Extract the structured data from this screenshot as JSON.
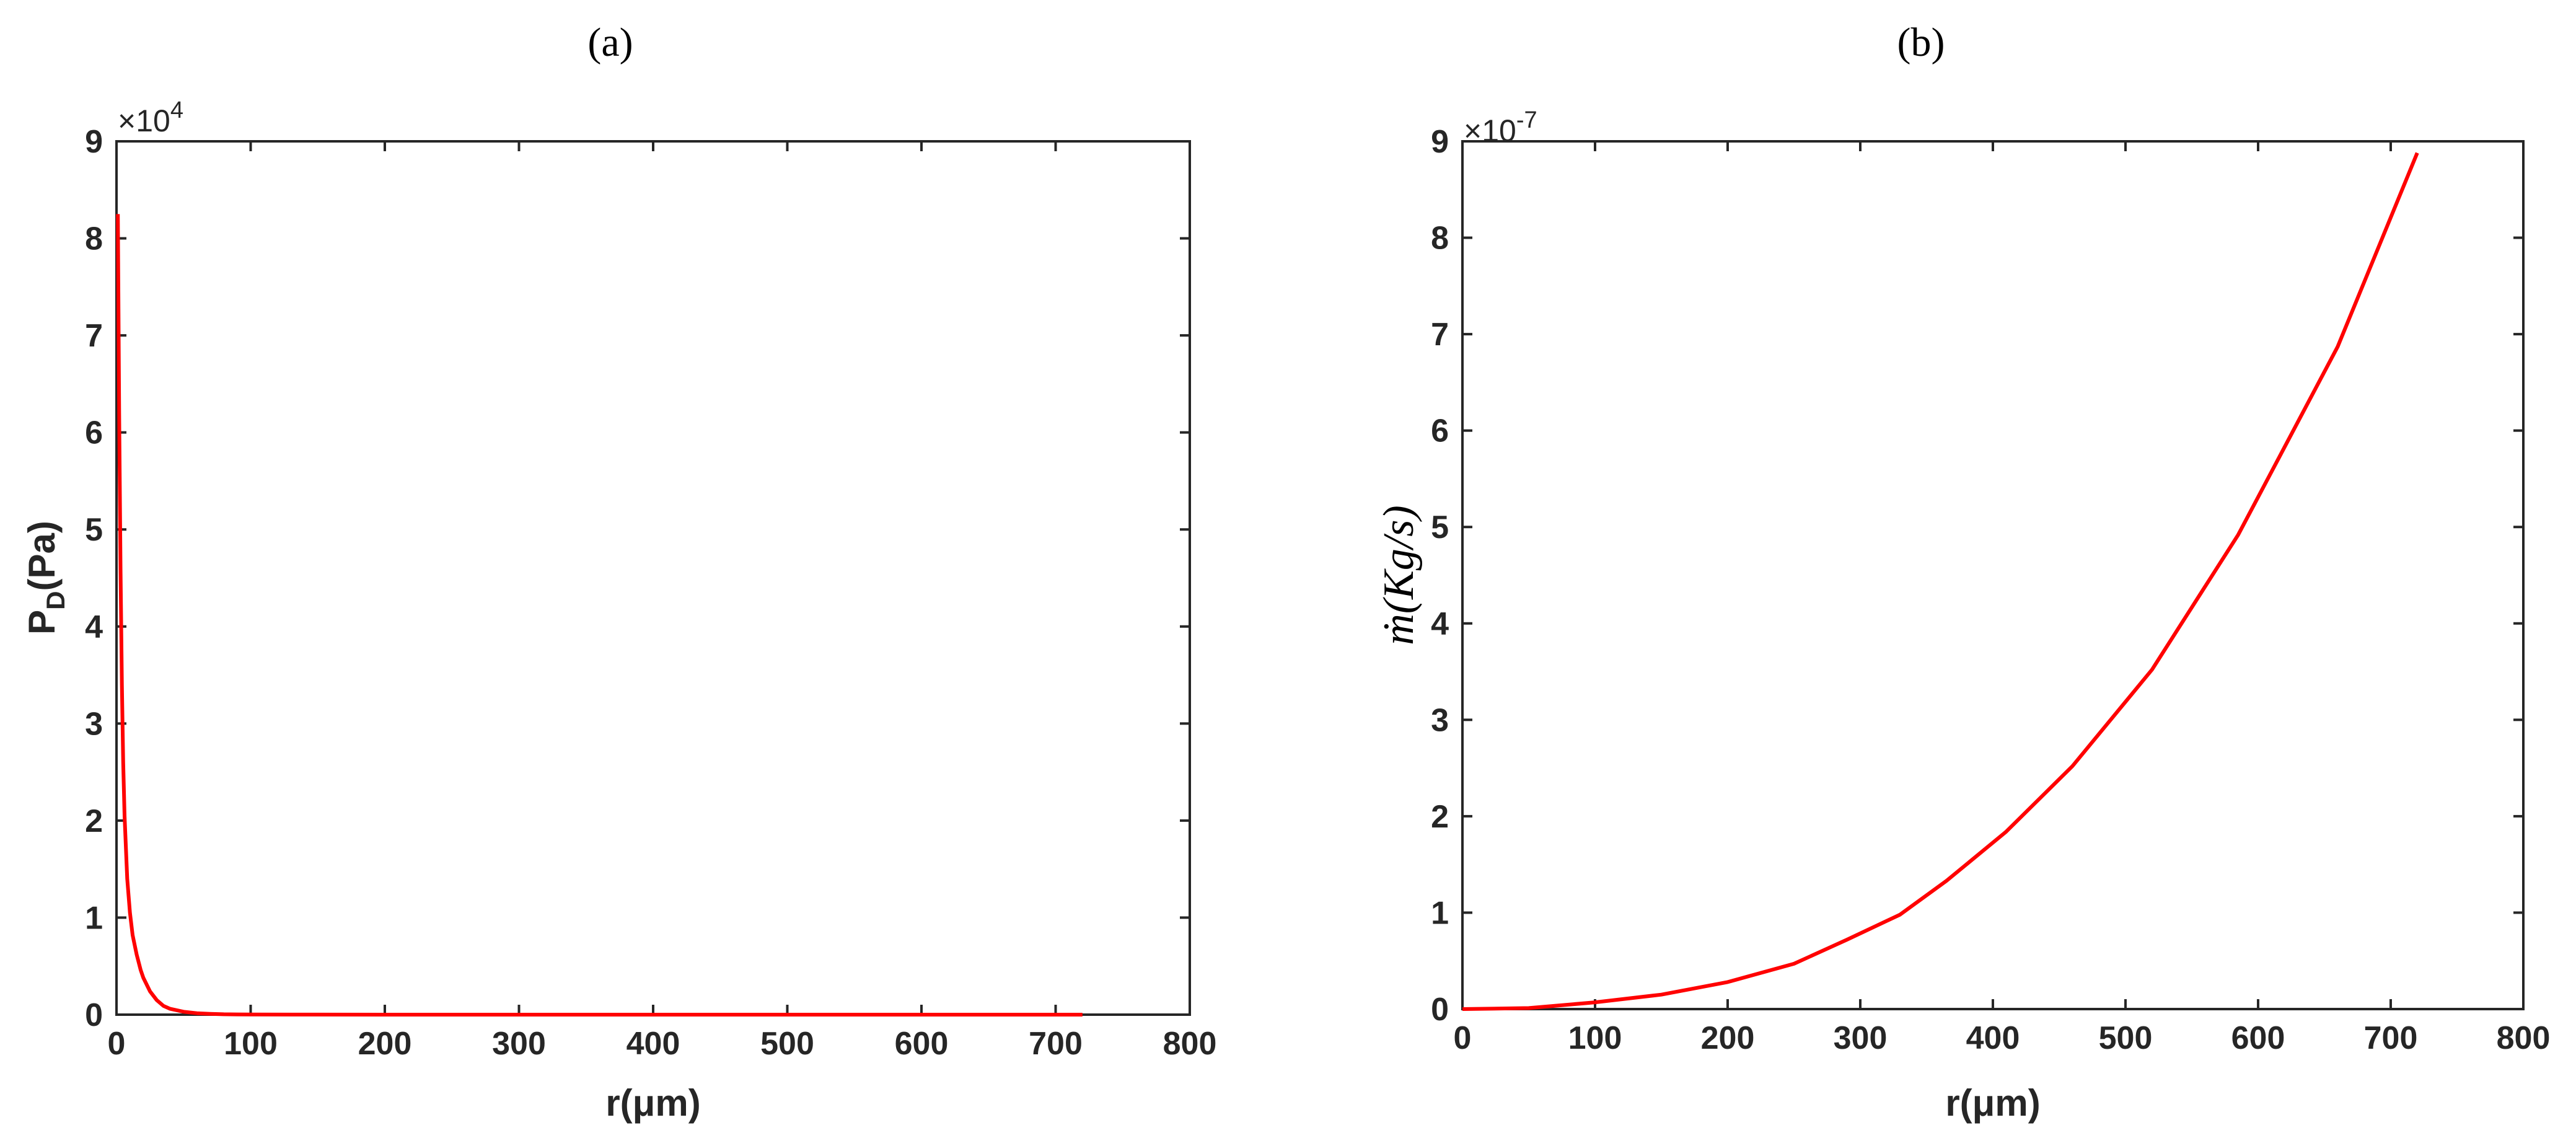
{
  "chart_data": [
    {
      "type": "line",
      "panel_label": "(a)",
      "xlabel": "r(μm)",
      "ylabel": "P",
      "ylabel_sub": "D",
      "ylabel_suffix": "(Pa)",
      "exponent_text": "×10",
      "exponent_power": "4",
      "xlim": [
        0,
        800
      ],
      "ylim": [
        0,
        90000
      ],
      "xticks": [
        0,
        100,
        200,
        300,
        400,
        500,
        600,
        700,
        800
      ],
      "yticks": [
        0,
        10000,
        20000,
        30000,
        40000,
        50000,
        60000,
        70000,
        80000,
        90000
      ],
      "xtick_labels": [
        "0",
        "100",
        "200",
        "300",
        "400",
        "500",
        "600",
        "700",
        "800"
      ],
      "ytick_labels": [
        "0",
        "1",
        "2",
        "3",
        "4",
        "5",
        "6",
        "7",
        "8",
        "9"
      ],
      "grid": false,
      "series": [
        {
          "color": "#ff0000",
          "x": [
            1,
            2,
            3,
            4,
            5,
            6,
            8,
            10,
            12,
            15,
            18,
            20,
            25,
            30,
            35,
            40,
            50,
            60,
            70,
            80,
            100,
            130,
            200,
            300,
            400,
            500,
            600,
            720
          ],
          "y": [
            82500,
            62000,
            46000,
            34000,
            26000,
            20500,
            14000,
            10500,
            8200,
            6200,
            4600,
            3800,
            2400,
            1500,
            900,
            600,
            300,
            150,
            80,
            40,
            15,
            5,
            0,
            0,
            0,
            0,
            0,
            0
          ]
        }
      ]
    },
    {
      "type": "line",
      "panel_label": "(b)",
      "xlabel": "r(μm)",
      "ylabel": "ṁ(Kg/s)",
      "exponent_text": "×10",
      "exponent_power": "-7",
      "xlim": [
        0,
        800
      ],
      "ylim": [
        0,
        9e-07
      ],
      "xticks": [
        0,
        100,
        200,
        300,
        400,
        500,
        600,
        700,
        800
      ],
      "yticks": [
        0,
        1e-07,
        2e-07,
        3e-07,
        4e-07,
        5e-07,
        6e-07,
        7e-07,
        8e-07,
        9e-07
      ],
      "xtick_labels": [
        "0",
        "100",
        "200",
        "300",
        "400",
        "500",
        "600",
        "700",
        "800"
      ],
      "ytick_labels": [
        "0",
        "1",
        "2",
        "3",
        "4",
        "5",
        "6",
        "7",
        "8",
        "9"
      ],
      "grid": false,
      "series": [
        {
          "color": "#ff0000",
          "x": [
            0,
            50,
            100,
            150,
            200,
            250,
            290,
            330,
            365,
            410,
            460,
            520,
            585,
            660,
            720
          ],
          "y": [
            0,
            1e-09,
            7e-09,
            1.5e-08,
            2.8e-08,
            4.7e-08,
            7.2e-08,
            9.8e-08,
            1.33e-07,
            1.84e-07,
            2.52e-07,
            3.52e-07,
            4.92e-07,
            6.87e-07,
            8.88e-07
          ]
        }
      ]
    }
  ]
}
